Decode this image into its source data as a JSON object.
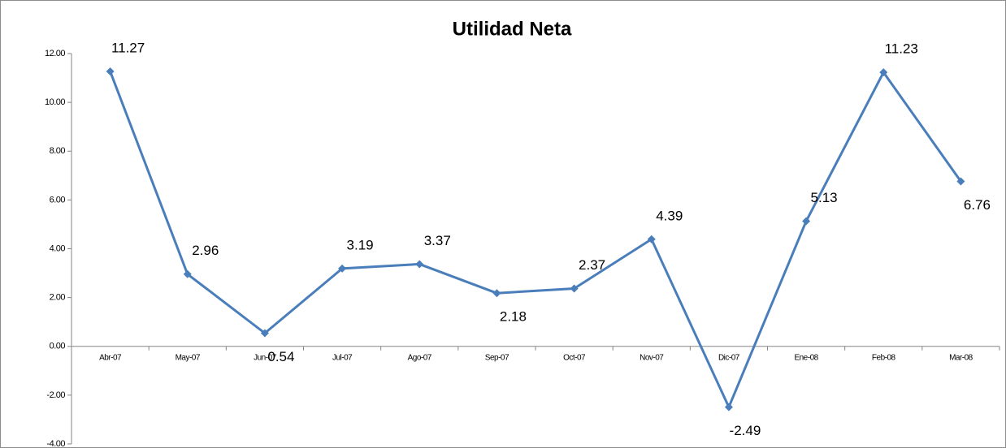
{
  "chart_data": {
    "type": "line",
    "title": "Utilidad Neta",
    "categories": [
      "Abr-07",
      "May-07",
      "Jun-07",
      "Jul-07",
      "Ago-07",
      "Sep-07",
      "Oct-07",
      "Nov-07",
      "Dic-07",
      "Ene-08",
      "Feb-08",
      "Mar-08"
    ],
    "series": [
      {
        "name": "Utilidad Neta",
        "color": "#4a7ebb",
        "values": [
          11.27,
          2.96,
          0.54,
          3.19,
          3.37,
          2.18,
          2.37,
          4.39,
          -2.49,
          5.13,
          11.23,
          6.76
        ]
      }
    ],
    "ylim": [
      -4,
      12
    ],
    "yticks": [
      {
        "value": -4,
        "label": "-4.00"
      },
      {
        "value": -2,
        "label": "-2.00"
      },
      {
        "value": 0,
        "label": "0.00"
      },
      {
        "value": 2,
        "label": "2.00"
      },
      {
        "value": 4,
        "label": "4.00"
      },
      {
        "value": 6,
        "label": "6.00"
      },
      {
        "value": 8,
        "label": "8.00"
      },
      {
        "value": 10,
        "label": "10.00"
      },
      {
        "value": 12,
        "label": "12.00"
      }
    ],
    "grid": false,
    "legend": false
  }
}
